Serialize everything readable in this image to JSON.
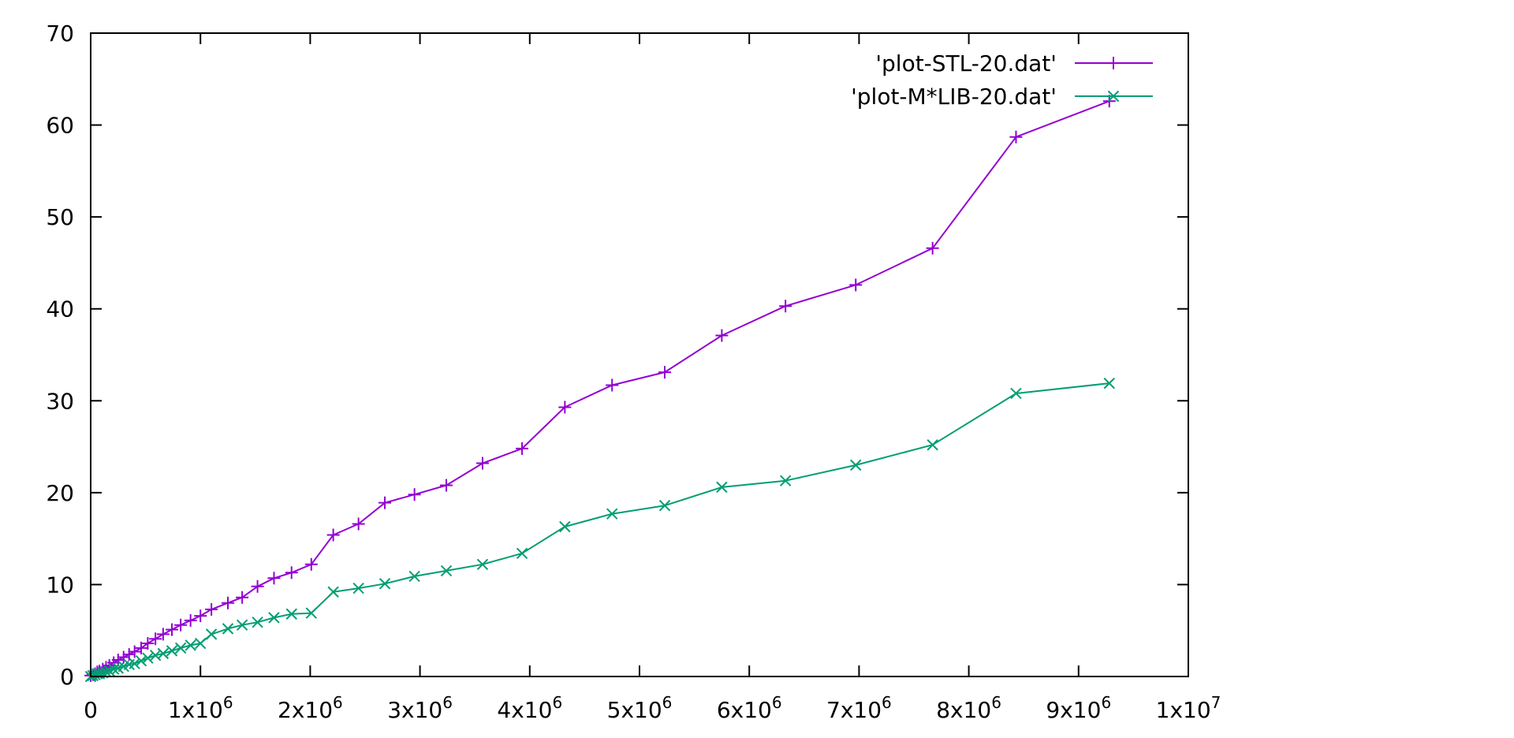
{
  "chart_data": {
    "type": "line",
    "title": "",
    "xlabel": "",
    "ylabel": "",
    "xlim": [
      0,
      10000000
    ],
    "ylim": [
      0,
      70
    ],
    "grid": false,
    "legend_position": "top-right",
    "x_ticks": [
      {
        "value": 0,
        "base": "0",
        "exp": ""
      },
      {
        "value": 1000000,
        "base": "1x10",
        "exp": "6"
      },
      {
        "value": 2000000,
        "base": "2x10",
        "exp": "6"
      },
      {
        "value": 3000000,
        "base": "3x10",
        "exp": "6"
      },
      {
        "value": 4000000,
        "base": "4x10",
        "exp": "6"
      },
      {
        "value": 5000000,
        "base": "5x10",
        "exp": "6"
      },
      {
        "value": 6000000,
        "base": "6x10",
        "exp": "6"
      },
      {
        "value": 7000000,
        "base": "7x10",
        "exp": "6"
      },
      {
        "value": 8000000,
        "base": "8x10",
        "exp": "6"
      },
      {
        "value": 9000000,
        "base": "9x10",
        "exp": "6"
      },
      {
        "value": 10000000,
        "base": "1x10",
        "exp": "7"
      }
    ],
    "y_ticks": [
      {
        "value": 0,
        "label": "0"
      },
      {
        "value": 10,
        "label": "10"
      },
      {
        "value": 20,
        "label": "20"
      },
      {
        "value": 30,
        "label": "30"
      },
      {
        "value": 40,
        "label": "40"
      },
      {
        "value": 50,
        "label": "50"
      },
      {
        "value": 60,
        "label": "60"
      },
      {
        "value": 70,
        "label": "70"
      }
    ],
    "series": [
      {
        "name": "'plot-STL-20.dat'",
        "color": "#9400d3",
        "marker": "plus",
        "x": [
          0,
          20000,
          40000,
          60000,
          80000,
          110000,
          140000,
          170000,
          210000,
          250000,
          300000,
          350000,
          400000,
          460000,
          520000,
          590000,
          660000,
          740000,
          820000,
          910000,
          1000000,
          1100000,
          1250000,
          1380000,
          1520000,
          1670000,
          1830000,
          2010000,
          2210000,
          2440000,
          2680000,
          2950000,
          3240000,
          3570000,
          3930000,
          4320000,
          4750000,
          5230000,
          5750000,
          6330000,
          6970000,
          7670000,
          8430000,
          9280000
        ],
        "y": [
          0.1,
          0.2,
          0.3,
          0.5,
          0.6,
          0.8,
          1.0,
          1.2,
          1.5,
          1.8,
          2.1,
          2.4,
          2.7,
          3.1,
          3.6,
          4.1,
          4.6,
          5.1,
          5.6,
          6.1,
          6.6,
          7.3,
          8.0,
          8.6,
          9.8,
          10.7,
          11.3,
          12.2,
          15.4,
          16.6,
          18.9,
          19.8,
          20.8,
          23.2,
          24.8,
          29.3,
          31.7,
          33.1,
          37.1,
          40.3,
          42.6,
          46.6,
          58.7,
          62.6
        ]
      },
      {
        "name": "'plot-M*LIB-20.dat'",
        "color": "#009e73",
        "marker": "cross",
        "x": [
          0,
          20000,
          40000,
          60000,
          80000,
          110000,
          140000,
          170000,
          210000,
          250000,
          300000,
          350000,
          400000,
          460000,
          520000,
          590000,
          660000,
          740000,
          820000,
          910000,
          1000000,
          1100000,
          1250000,
          1380000,
          1520000,
          1670000,
          1830000,
          2010000,
          2210000,
          2440000,
          2680000,
          2950000,
          3240000,
          3570000,
          3930000,
          4320000,
          4750000,
          5230000,
          5750000,
          6330000,
          6970000,
          7670000,
          8430000,
          9280000
        ],
        "y": [
          0.0,
          0.1,
          0.2,
          0.3,
          0.3,
          0.4,
          0.5,
          0.6,
          0.8,
          0.9,
          1.1,
          1.3,
          1.4,
          1.7,
          2.0,
          2.3,
          2.5,
          2.8,
          3.1,
          3.4,
          3.6,
          4.6,
          5.2,
          5.6,
          5.9,
          6.4,
          6.8,
          6.9,
          9.2,
          9.6,
          10.1,
          10.9,
          11.5,
          12.2,
          13.4,
          16.3,
          17.7,
          18.6,
          20.6,
          21.3,
          23.0,
          25.2,
          30.8,
          31.9
        ]
      }
    ]
  }
}
